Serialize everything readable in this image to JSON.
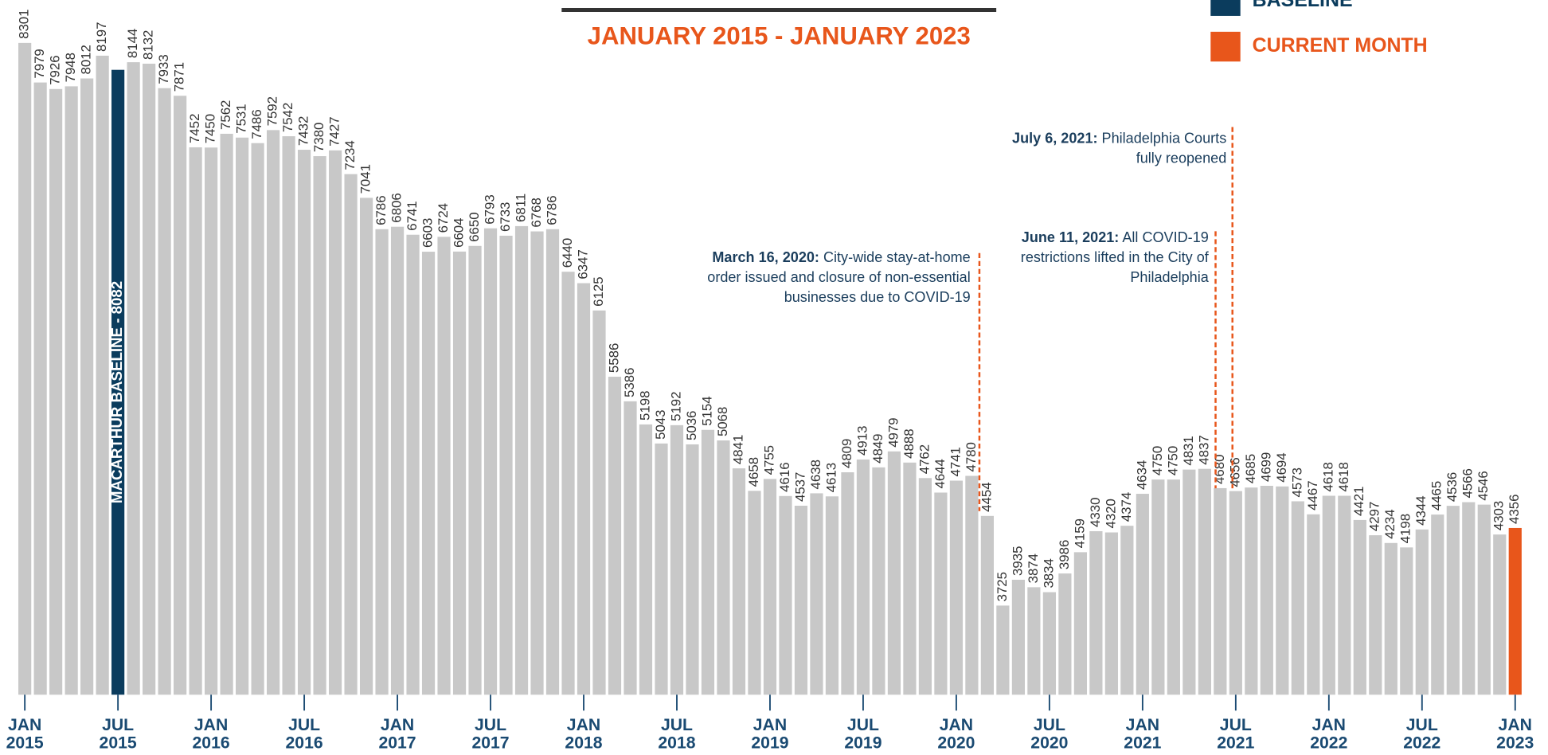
{
  "chart_data": {
    "type": "bar",
    "subtitle": "JANUARY 2015 - JANUARY 2023",
    "legend": [
      {
        "name": "BASELINE",
        "color": "#0b3c5d"
      },
      {
        "name": "CURRENT MONTH",
        "color": "#e8561b"
      }
    ],
    "categories": [
      "JAN 2015",
      null,
      null,
      null,
      null,
      null,
      "JUL 2015",
      null,
      null,
      null,
      null,
      null,
      "JAN 2016",
      null,
      null,
      null,
      null,
      null,
      "JUL 2016",
      null,
      null,
      null,
      null,
      null,
      "JAN 2017",
      null,
      null,
      null,
      null,
      null,
      "JUL 2017",
      null,
      null,
      null,
      null,
      null,
      "JAN 2018",
      null,
      null,
      null,
      null,
      null,
      "JUL 2018",
      null,
      null,
      null,
      null,
      null,
      "JAN 2019",
      null,
      null,
      null,
      null,
      null,
      "JUL 2019",
      null,
      null,
      null,
      null,
      null,
      "JAN 2020",
      null,
      null,
      null,
      null,
      null,
      "JUL 2020",
      null,
      null,
      null,
      null,
      null,
      "JAN 2021",
      null,
      null,
      null,
      null,
      null,
      "JUL 2021",
      null,
      null,
      null,
      null,
      null,
      "JAN 2022",
      null,
      null,
      null,
      null,
      null,
      "JUL 2022",
      null,
      null,
      null,
      null,
      null,
      "JAN 2023"
    ],
    "values": [
      8301,
      7979,
      7926,
      7948,
      8012,
      8197,
      8082,
      8144,
      8132,
      7933,
      7871,
      7452,
      7450,
      7562,
      7531,
      7486,
      7592,
      7542,
      7432,
      7380,
      7427,
      7234,
      7041,
      6786,
      6806,
      6741,
      6603,
      6724,
      6604,
      6650,
      6793,
      6733,
      6811,
      6768,
      6786,
      6440,
      6347,
      6125,
      5586,
      5386,
      5198,
      5043,
      5192,
      5036,
      5154,
      5068,
      4841,
      4658,
      4755,
      4616,
      4537,
      4638,
      4613,
      4809,
      4913,
      4849,
      4979,
      4888,
      4762,
      4644,
      4741,
      4780,
      4454,
      3725,
      3935,
      3874,
      3834,
      3986,
      4159,
      4330,
      4320,
      4374,
      4634,
      4750,
      4750,
      4831,
      4837,
      4680,
      4656,
      4685,
      4699,
      4694,
      4573,
      4467,
      4618,
      4618,
      4421,
      4297,
      4234,
      4198,
      4344,
      4465,
      4536,
      4566,
      4546,
      4303,
      4356
    ],
    "value_labels": [
      "8301",
      "7979",
      "7926",
      "7948",
      "8012",
      "8197",
      "MACARTHUR BASELINE - 8082",
      "8144",
      "8132",
      "7933",
      "7871",
      "7452",
      "7450",
      "7562",
      "7531",
      "7486",
      "7592",
      "7542",
      "7432",
      "7380",
      "7427",
      "7234",
      "7041",
      "6786",
      "6806",
      "6741",
      "6603",
      "6724",
      "6604",
      "6650",
      "6793",
      "6733",
      "6811",
      "6768",
      "6786",
      "6440",
      "6347",
      "6125",
      "5586",
      "5386",
      "5198",
      "5043",
      "5192",
      "5036",
      "5154",
      "5068",
      "4841",
      "4658",
      "4755",
      "4616",
      "4537",
      "4638",
      "4613",
      "4809",
      "4913",
      "4849",
      "4979",
      "4888",
      "4762",
      "4644",
      "4741",
      "4780",
      "4454",
      "3725",
      "3935",
      "3874",
      "3834",
      "3986",
      "4159",
      "4330",
      "4320",
      "4374",
      "4634",
      "4750",
      "4750",
      "4831",
      "4837",
      "4680",
      "4656",
      "4685",
      "4699",
      "4694",
      "4573",
      "4467",
      "4618",
      "4618",
      "4421",
      "4297",
      "4234",
      "4198",
      "4344",
      "4465",
      "4536",
      "4566",
      "4546",
      "4303",
      "4356"
    ],
    "colors": [
      "#c8c8c8",
      "#c8c8c8",
      "#c8c8c8",
      "#c8c8c8",
      "#c8c8c8",
      "#c8c8c8",
      "#0b3c5d",
      "#c8c8c8",
      "#c8c8c8",
      "#c8c8c8",
      "#c8c8c8",
      "#c8c8c8",
      "#c8c8c8",
      "#c8c8c8",
      "#c8c8c8",
      "#c8c8c8",
      "#c8c8c8",
      "#c8c8c8",
      "#c8c8c8",
      "#c8c8c8",
      "#c8c8c8",
      "#c8c8c8",
      "#c8c8c8",
      "#c8c8c8",
      "#c8c8c8",
      "#c8c8c8",
      "#c8c8c8",
      "#c8c8c8",
      "#c8c8c8",
      "#c8c8c8",
      "#c8c8c8",
      "#c8c8c8",
      "#c8c8c8",
      "#c8c8c8",
      "#c8c8c8",
      "#c8c8c8",
      "#c8c8c8",
      "#c8c8c8",
      "#c8c8c8",
      "#c8c8c8",
      "#c8c8c8",
      "#c8c8c8",
      "#c8c8c8",
      "#c8c8c8",
      "#c8c8c8",
      "#c8c8c8",
      "#c8c8c8",
      "#c8c8c8",
      "#c8c8c8",
      "#c8c8c8",
      "#c8c8c8",
      "#c8c8c8",
      "#c8c8c8",
      "#c8c8c8",
      "#c8c8c8",
      "#c8c8c8",
      "#c8c8c8",
      "#c8c8c8",
      "#c8c8c8",
      "#c8c8c8",
      "#c8c8c8",
      "#c8c8c8",
      "#c8c8c8",
      "#c8c8c8",
      "#c8c8c8",
      "#c8c8c8",
      "#c8c8c8",
      "#c8c8c8",
      "#c8c8c8",
      "#c8c8c8",
      "#c8c8c8",
      "#c8c8c8",
      "#c8c8c8",
      "#c8c8c8",
      "#c8c8c8",
      "#c8c8c8",
      "#c8c8c8",
      "#c8c8c8",
      "#c8c8c8",
      "#c8c8c8",
      "#c8c8c8",
      "#c8c8c8",
      "#c8c8c8",
      "#c8c8c8",
      "#c8c8c8",
      "#c8c8c8",
      "#c8c8c8",
      "#c8c8c8",
      "#c8c8c8",
      "#c8c8c8",
      "#c8c8c8",
      "#c8c8c8",
      "#c8c8c8",
      "#c8c8c8",
      "#c8c8c8",
      "#c8c8c8",
      "#e8561b"
    ],
    "ylim": [
      3000,
      8650
    ],
    "annotations": [
      {
        "date": "March 16, 2020:",
        "text": "City-wide stay-at-home order issued and closure of non-essential businesses due to COVID-19"
      },
      {
        "date": "June 11, 2021:",
        "text": "All COVID-19 restrictions lifted in the City of Philadelphia"
      },
      {
        "date": "July 6, 2021:",
        "text": "Philadelphia Courts fully reopened"
      }
    ]
  }
}
